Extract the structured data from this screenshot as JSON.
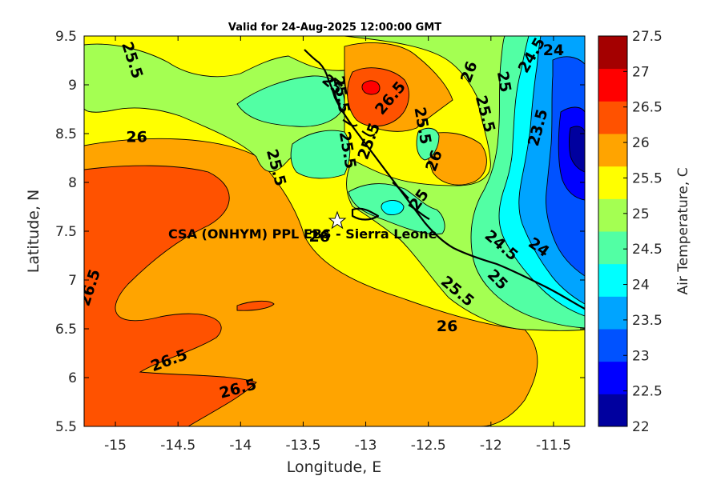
{
  "title": "Valid for 24-Aug-2025 12:00:00 GMT",
  "xlabel": "Longitude, E",
  "ylabel": "Latitude, N",
  "colorbar_label": "Air Temperature, C",
  "site_label": "CSA (ONHYM) PPL EBS  - Sierra Leone",
  "site_marker": {
    "lon": -13.23,
    "lat": 7.6
  },
  "x_range": [
    -15.25,
    -11.25
  ],
  "y_range": [
    5.5,
    9.5
  ],
  "x_ticks": [
    "-15",
    "-14.5",
    "-14",
    "-13.5",
    "-13",
    "-12.5",
    "-12",
    "-11.5"
  ],
  "y_ticks": [
    "9.5",
    "9",
    "8.5",
    "8",
    "7.5",
    "7",
    "6.5",
    "6",
    "5.5"
  ],
  "colorbar": {
    "ticks": [
      "27.5",
      "27",
      "26.5",
      "26",
      "25.5",
      "25",
      "24.5",
      "24",
      "23.5",
      "23",
      "22.5",
      "22"
    ],
    "colors": [
      "#00009f",
      "#0000ff",
      "#0052ff",
      "#00a4ff",
      "#00ffff",
      "#52ffa4",
      "#a4ff52",
      "#ffff00",
      "#ffa400",
      "#ff5200",
      "#ff0000",
      "#a40000"
    ]
  },
  "contour_labels": [
    {
      "text": "25.5",
      "lon": -14.87,
      "lat": 9.25,
      "angle": 72
    },
    {
      "text": "25",
      "lon": -13.27,
      "lat": 9.0,
      "angle": 40
    },
    {
      "text": "26",
      "lon": -14.83,
      "lat": 8.46,
      "angle": 0
    },
    {
      "text": "25.5",
      "lon": -13.72,
      "lat": 8.15,
      "angle": 75
    },
    {
      "text": "26",
      "lon": -13.37,
      "lat": 7.44,
      "angle": 0
    },
    {
      "text": "26.5",
      "lon": -15.2,
      "lat": 6.92,
      "angle": -72
    },
    {
      "text": "26.5",
      "lon": -14.57,
      "lat": 6.17,
      "angle": -20
    },
    {
      "text": "26.5",
      "lon": -14.02,
      "lat": 5.88,
      "angle": -15
    },
    {
      "text": "26.5",
      "lon": -12.8,
      "lat": 8.86,
      "angle": -50
    },
    {
      "text": "25.5",
      "lon": -12.55,
      "lat": 8.58,
      "angle": 80
    },
    {
      "text": "26",
      "lon": -12.17,
      "lat": 9.13,
      "angle": -70
    },
    {
      "text": "26",
      "lon": -12.45,
      "lat": 8.22,
      "angle": -70
    },
    {
      "text": "25.5",
      "lon": -12.05,
      "lat": 8.7,
      "angle": 75
    },
    {
      "text": "25",
      "lon": -11.9,
      "lat": 9.03,
      "angle": 80
    },
    {
      "text": "24.5",
      "lon": -11.67,
      "lat": 9.3,
      "angle": -60
    },
    {
      "text": "24",
      "lon": -11.5,
      "lat": 9.35,
      "angle": 0
    },
    {
      "text": "23.5",
      "lon": -11.62,
      "lat": 8.56,
      "angle": -75
    },
    {
      "text": "24",
      "lon": -11.62,
      "lat": 7.33,
      "angle": 35
    },
    {
      "text": "24.5",
      "lon": -11.92,
      "lat": 7.35,
      "angle": 40
    },
    {
      "text": "25",
      "lon": -11.95,
      "lat": 7.0,
      "angle": 45
    },
    {
      "text": "25.5",
      "lon": -12.27,
      "lat": 6.88,
      "angle": 40
    },
    {
      "text": "26",
      "lon": -12.35,
      "lat": 6.52,
      "angle": 0
    },
    {
      "text": "25",
      "lon": -12.57,
      "lat": 7.82,
      "angle": -55
    },
    {
      "text": "25.5",
      "lon": -12.97,
      "lat": 8.42,
      "angle": -70
    },
    {
      "text": "25.5",
      "lon": -13.15,
      "lat": 8.33,
      "angle": 80
    },
    {
      "text": "25.5",
      "lon": -13.2,
      "lat": 8.9,
      "angle": 80
    }
  ]
}
